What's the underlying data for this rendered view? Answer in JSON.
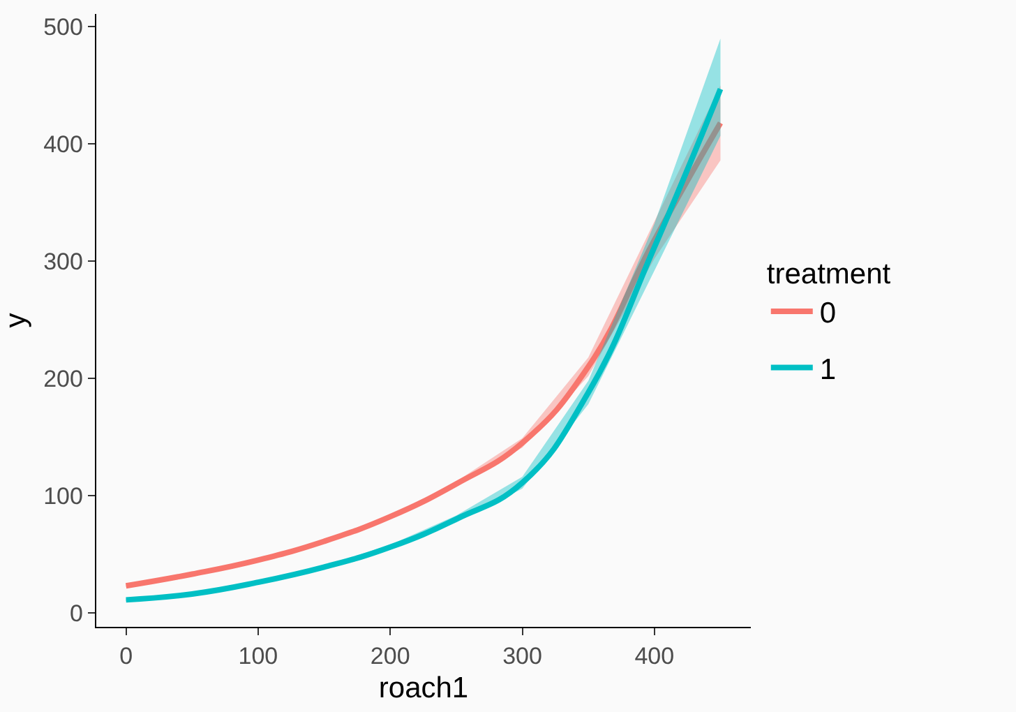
{
  "chart_data": {
    "type": "line",
    "xlabel": "roach1",
    "ylabel": "y",
    "legend_title": "treatment",
    "legend": "right",
    "marker": "none",
    "line_style": "solid",
    "x": [
      0,
      50,
      100,
      150,
      200,
      250,
      300,
      350,
      400,
      450
    ],
    "xlim": [
      -22.5,
      473
    ],
    "ylim": [
      -12,
      511
    ],
    "xticks": [
      0,
      100,
      200,
      300,
      400
    ],
    "yticks": [
      0,
      100,
      200,
      300,
      400,
      500
    ],
    "series": [
      {
        "name": "0",
        "color": "#f8766d",
        "values": [
          23,
          33,
          45,
          61,
          82,
          110,
          145,
          210,
          318,
          418
        ],
        "lower": [
          22,
          32,
          44,
          60,
          81,
          108,
          141,
          202,
          302,
          386
        ],
        "upper": [
          24,
          34,
          46,
          62,
          83,
          112,
          149,
          218,
          334,
          450
        ]
      },
      {
        "name": "1",
        "color": "#00bfc4",
        "values": [
          11,
          16,
          26,
          39,
          56,
          80,
          111,
          188,
          312,
          447
        ],
        "lower": [
          10,
          15,
          25,
          38,
          54,
          77,
          106,
          178,
          292,
          407
        ],
        "upper": [
          12,
          17,
          27,
          40,
          58,
          83,
          116,
          198,
          332,
          490
        ]
      }
    ]
  }
}
